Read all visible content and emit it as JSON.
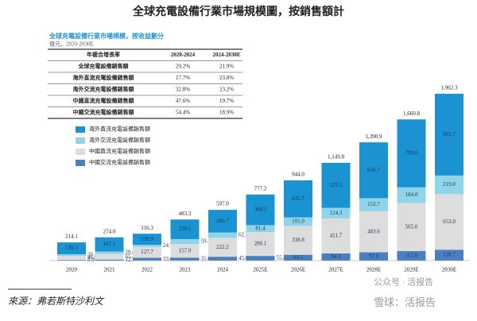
{
  "title": "全球充電設備行業市場規模圖，按銷售額計",
  "chart_data": {
    "type": "bar",
    "stacked": true,
    "subtitle": "全球充電設備行業市場規模，按收益劃分",
    "unit": "億元，2020-2030E",
    "categories": [
      "2020",
      "2021",
      "2022",
      "2023",
      "2024",
      "2025E",
      "2026E",
      "2027E",
      "2028E",
      "2029E",
      "2030E"
    ],
    "series": [
      {
        "name": "海外直流充電設備銷售額",
        "color": "#1b93d2",
        "values": [
          139.1,
          167.1,
          130.9,
          230.5,
          266.7,
          360.3,
          435.7,
          529.5,
          656.7,
          799.0,
          961.7
        ],
        "value_labels": [
          "139.1",
          "167.1",
          "130.9",
          "230.5",
          "266.7",
          "360.3",
          "435.7",
          "529.5",
          "656.7",
          "799.0",
          "961.7"
        ]
      },
      {
        "name": "海外交流充電設備銷售額",
        "color": "#8fd4e8",
        "values": [
          20.1,
          28.8,
          24.7,
          59.3,
          62.5,
          81.4,
          101.0,
          124.3,
          152.7,
          184.0,
          219.0
        ],
        "value_labels": [
          "20.1",
          "28.8",
          "24.7",
          "59.3",
          "62.5",
          "81.4",
          "101.0",
          "124.3",
          "152.7",
          "184.0",
          "219.0"
        ]
      },
      {
        "name": "中國直流充電設備銷售額",
        "color": "#dddddd",
        "values": [
          46.9,
          65.4,
          127.7,
          157.9,
          222.2,
          280.1,
          338.8,
          411.7,
          483.6,
          565.0,
          653.0
        ],
        "value_labels": [
          "46.9",
          "65.4",
          "127.7",
          "157.9",
          "222.2",
          "280.1",
          "338.8",
          "411.7",
          "483.6",
          "565.0",
          "653.0"
        ]
      },
      {
        "name": "中國交流充電設備銷售額",
        "color": "#4a80c2",
        "values": [
          8.0,
          12.7,
          33.0,
          35.6,
          45.6,
          55.4,
          68.5,
          84.3,
          97.9,
          112.8,
          128.7
        ],
        "value_labels": [
          "8.0",
          "12.7",
          "33.0",
          "35.6",
          "45.6",
          "55.4",
          "68.5",
          "84.3",
          "97.9",
          "112.8",
          "128.7"
        ]
      }
    ],
    "totals": {
      "values": [
        214.1,
        274.0,
        316.3,
        483.3,
        597.0,
        777.2,
        944.0,
        1149.8,
        1390.9,
        1660.8,
        1962.3
      ],
      "value_labels": [
        "214.1",
        "274.0",
        "316.3",
        "483.3",
        "597.0",
        "777.2",
        "944.0",
        "1,149.8",
        "1,390.9",
        "1,660.8",
        "1,962.3"
      ]
    }
  },
  "table": {
    "header": [
      "年複合增長率",
      "2020-2024",
      "2024-2030E"
    ],
    "rows": [
      [
        "全球充電設備銷售額",
        "29.2%",
        "21.9%"
      ],
      [
        "海外直流充電設備銷售額",
        "17.7%",
        "23.8%"
      ],
      [
        "海外交流充電設備銷售額",
        "32.8%",
        "23.2%"
      ],
      [
        "中國直流充電設備銷售額",
        "47.6%",
        "19.7%"
      ],
      [
        "中國交流充電設備銷售額",
        "54.4%",
        "18.9%"
      ]
    ]
  },
  "source": "來源：弗若斯特沙利文",
  "watermark": [
    "公众号 · 活报告",
    "雪球：活报告"
  ]
}
